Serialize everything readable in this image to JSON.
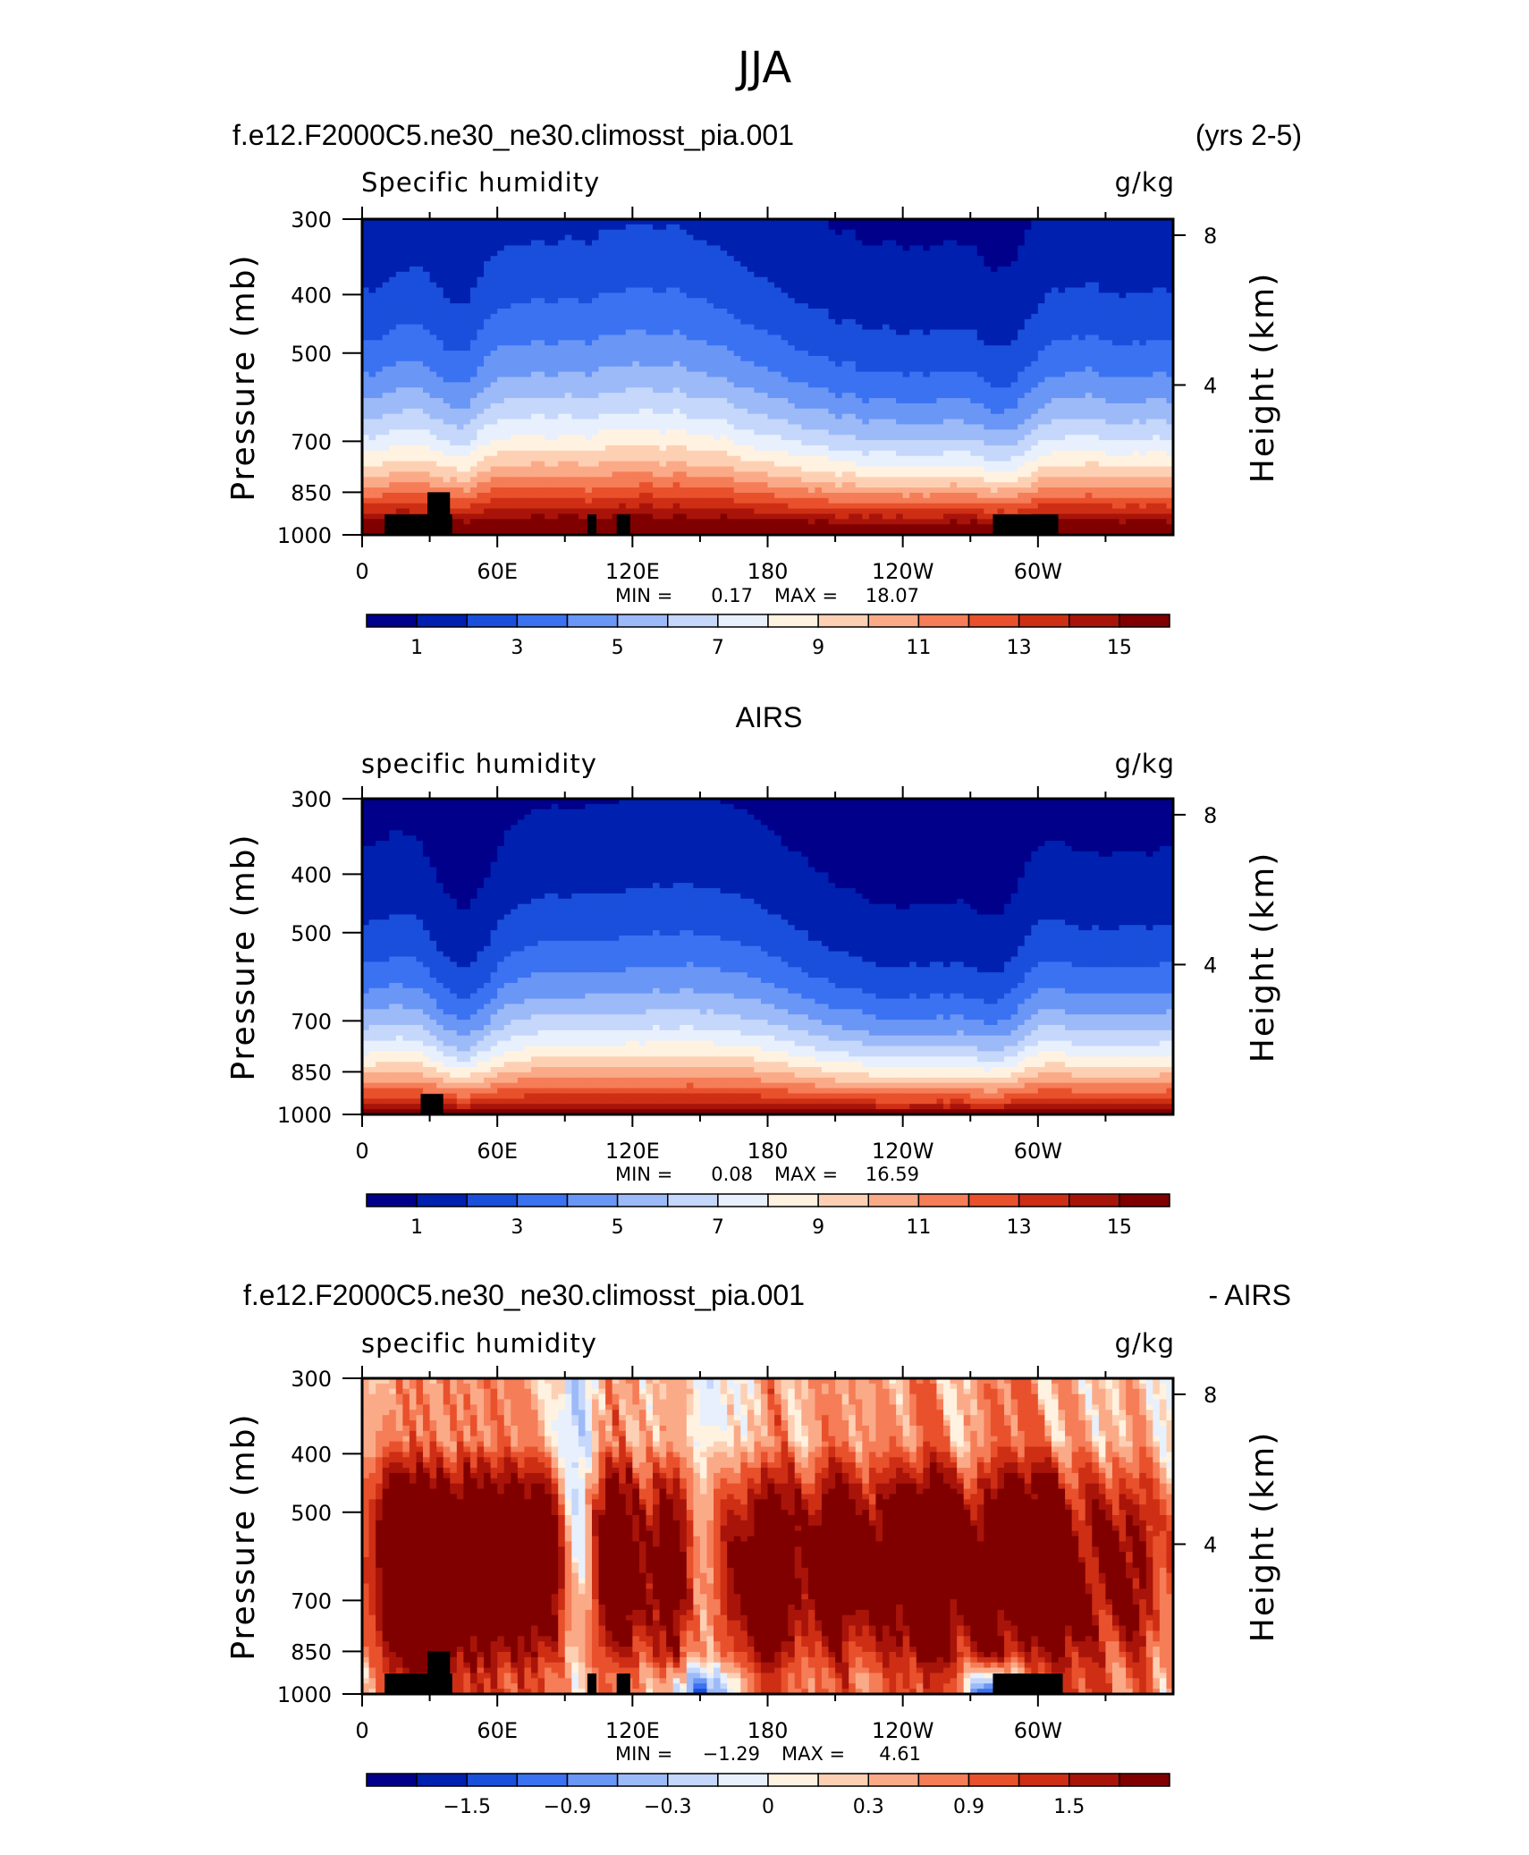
{
  "figure": {
    "season_title": "JJA",
    "mountain_color": "#000000",
    "palette": [
      "#00008B",
      "#0020B0",
      "#1A4FDC",
      "#3A72F2",
      "#6A96F6",
      "#9DBAF8",
      "#C5D7FB",
      "#E8F0FD",
      "#FFF2E0",
      "#FDD0B4",
      "#FBAA88",
      "#F57D57",
      "#E8512C",
      "#CE2E14",
      "#A81409",
      "#800000"
    ]
  },
  "chart_data": [
    {
      "type": "contour",
      "title_left": "f.e12.F2000C5.ne30_ne30.climosst_pia.001",
      "title_right": "(yrs 2-5)",
      "variable": "Specific humidity",
      "units": "g/kg",
      "ylabel": "Pressure (mb)",
      "ylabel_right": "Height (km)",
      "pressure_ticks": [
        "300",
        "400",
        "500",
        "700",
        "850",
        "1000"
      ],
      "pressure_values": [
        300,
        400,
        500,
        700,
        850,
        1000
      ],
      "height_ticks": [
        "8",
        "4"
      ],
      "height_values": [
        8,
        4
      ],
      "longitude_ticks": [
        "0",
        "60E",
        "120E",
        "180",
        "120W",
        "60W"
      ],
      "longitude_values": [
        0,
        60,
        120,
        180,
        240,
        300
      ],
      "x_range": [
        0,
        360
      ],
      "p_range": [
        300,
        1000
      ],
      "min_label": "MIN =",
      "min_value": "0.17",
      "max_label": "MAX =",
      "max_value": "18.07",
      "colorbar_labels": [
        "1",
        "3",
        "5",
        "7",
        "9",
        "11",
        "13",
        "15"
      ],
      "colorbar_levels": [
        1,
        3,
        5,
        7,
        9,
        11,
        13,
        15
      ],
      "field_kind": "model",
      "mountains": [
        [
          10,
          40,
          925
        ],
        [
          29,
          39,
          850
        ],
        [
          100,
          104,
          925
        ],
        [
          113,
          119,
          925
        ],
        [
          280,
          309,
          925
        ]
      ]
    },
    {
      "type": "contour",
      "title_center": "AIRS",
      "variable": "specific humidity",
      "units": "g/kg",
      "ylabel": "Pressure (mb)",
      "ylabel_right": "Height (km)",
      "pressure_ticks": [
        "300",
        "400",
        "500",
        "700",
        "850",
        "1000"
      ],
      "pressure_values": [
        300,
        400,
        500,
        700,
        850,
        1000
      ],
      "height_ticks": [
        "8",
        "4"
      ],
      "height_values": [
        8,
        4
      ],
      "longitude_ticks": [
        "0",
        "60E",
        "120E",
        "180",
        "120W",
        "60W"
      ],
      "longitude_values": [
        0,
        60,
        120,
        180,
        240,
        300
      ],
      "x_range": [
        0,
        360
      ],
      "p_range": [
        300,
        1000
      ],
      "min_label": "MIN =",
      "min_value": "0.08",
      "max_label": "MAX =",
      "max_value": "16.59",
      "colorbar_labels": [
        "1",
        "3",
        "5",
        "7",
        "9",
        "11",
        "13",
        "15"
      ],
      "colorbar_levels": [
        1,
        3,
        5,
        7,
        9,
        11,
        13,
        15
      ],
      "field_kind": "obs",
      "mountains": [
        [
          26,
          36,
          925
        ]
      ]
    },
    {
      "type": "contour",
      "title_left": "f.e12.F2000C5.ne30_ne30.climosst_pia.001",
      "title_right": "- AIRS",
      "variable": "specific humidity",
      "units": "g/kg",
      "ylabel": "Pressure (mb)",
      "ylabel_right": "Height (km)",
      "pressure_ticks": [
        "300",
        "400",
        "500",
        "700",
        "850",
        "1000"
      ],
      "pressure_values": [
        300,
        400,
        500,
        700,
        850,
        1000
      ],
      "height_ticks": [
        "8",
        "4"
      ],
      "height_values": [
        8,
        4
      ],
      "longitude_ticks": [
        "0",
        "60E",
        "120E",
        "180",
        "120W",
        "60W"
      ],
      "longitude_values": [
        0,
        60,
        120,
        180,
        240,
        300
      ],
      "x_range": [
        0,
        360
      ],
      "p_range": [
        300,
        1000
      ],
      "min_label": "MIN =",
      "min_value": "−1.29",
      "max_label": "MAX =",
      "max_value": "4.61",
      "colorbar_labels": [
        "−1.5",
        "−0.9",
        "−0.3",
        "0",
        "0.3",
        "0.9",
        "1.5"
      ],
      "colorbar_levels": [
        -1.5,
        -0.9,
        -0.3,
        0,
        0.3,
        0.9,
        1.5
      ],
      "field_kind": "diff",
      "mountains": [
        [
          10,
          40,
          925
        ],
        [
          29,
          39,
          850
        ],
        [
          100,
          104,
          925
        ],
        [
          113,
          119,
          925
        ],
        [
          280,
          311,
          925
        ]
      ]
    }
  ]
}
